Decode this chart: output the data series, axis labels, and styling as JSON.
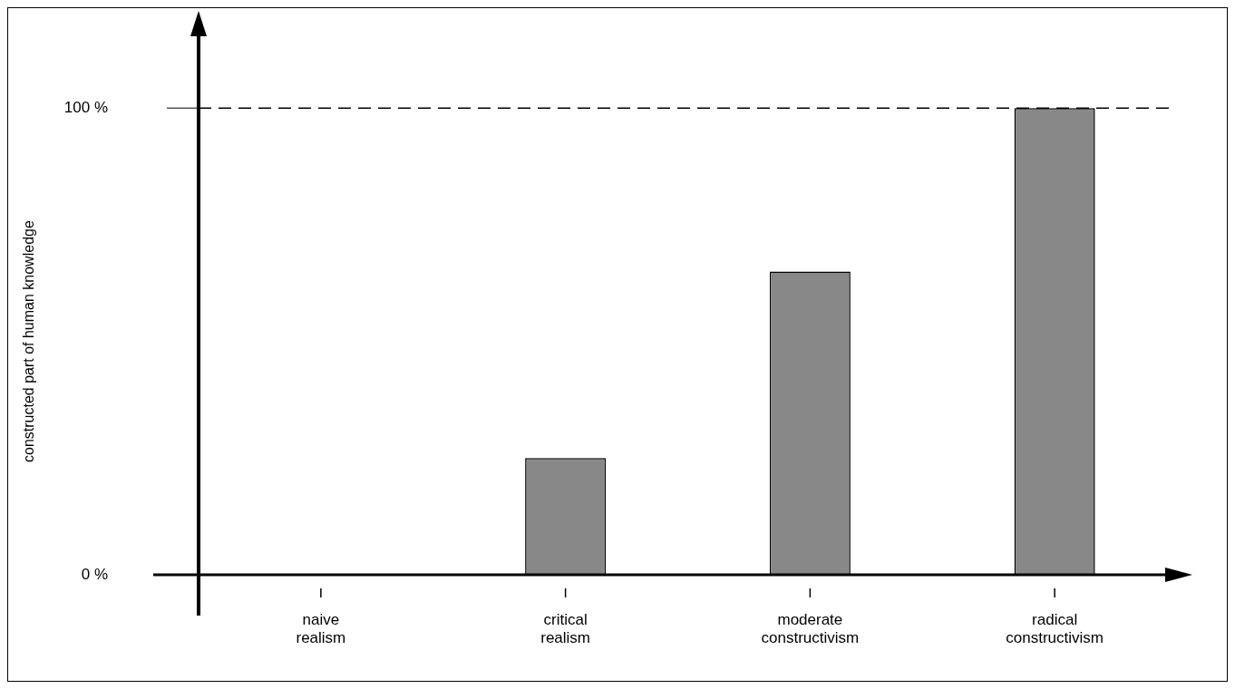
{
  "chart_data": {
    "type": "bar",
    "ylabel": "constructed part of human knowledge",
    "categories": [
      "naive realism",
      "critical realism",
      "moderate constructivism",
      "radical constructivism"
    ],
    "values": [
      0,
      25,
      65,
      100
    ],
    "color": "#888888",
    "ylim": [
      0,
      100
    ],
    "yticks": [
      {
        "value": 0,
        "label": "0 %"
      },
      {
        "value": 100,
        "label": "100 %"
      }
    ],
    "ref_lines": [
      {
        "axis": "y",
        "value": 100,
        "line_style": "dashed",
        "color": "#000000"
      }
    ],
    "grid": false,
    "legend": false
  }
}
